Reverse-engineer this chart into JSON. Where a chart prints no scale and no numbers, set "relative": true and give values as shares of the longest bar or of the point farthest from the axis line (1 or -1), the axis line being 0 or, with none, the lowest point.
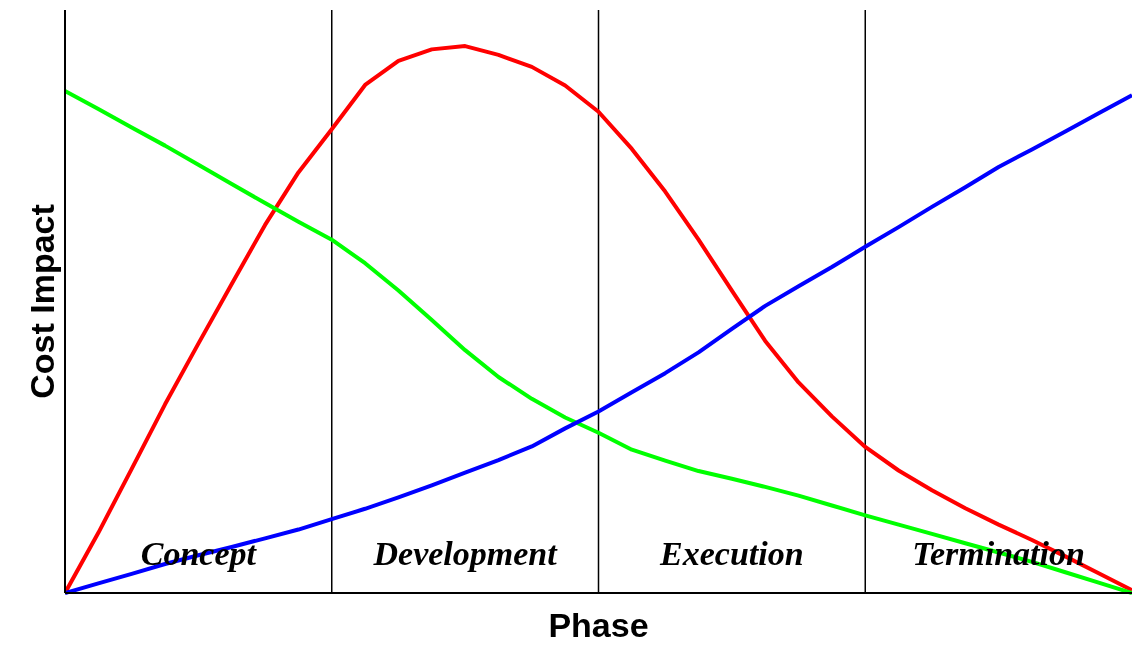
{
  "chart_data": {
    "type": "line",
    "relative": true,
    "xlabel": "Phase",
    "ylabel": "Cost Impact",
    "categories": [
      null,
      null,
      null,
      null,
      "Concept",
      null,
      null,
      null,
      null,
      null,
      null,
      null,
      "Development",
      null,
      null,
      null,
      null,
      null,
      null,
      null,
      "Execution",
      null,
      null,
      null,
      null,
      null,
      null,
      null,
      "Termination",
      null,
      null,
      null,
      null
    ],
    "grid": "x",
    "marker": "none",
    "line_style": "solid",
    "series": [
      {
        "color": "#ff0000",
        "values": [
          0,
          0.11,
          0.227,
          0.345,
          0.456,
          0.565,
          0.673,
          0.769,
          0.848,
          0.929,
          0.973,
          0.994,
          1,
          0.984,
          0.962,
          0.928,
          0.88,
          0.812,
          0.734,
          0.646,
          0.553,
          0.461,
          0.385,
          0.323,
          0.267,
          0.224,
          0.188,
          0.155,
          0.125,
          0.097,
          0.067,
          0.036,
          0.005
        ]
      },
      {
        "color": "#00ff00",
        "values": [
          0.918,
          0.885,
          0.851,
          0.818,
          0.783,
          0.748,
          0.713,
          0.679,
          0.646,
          0.603,
          0.553,
          0.499,
          0.444,
          0.395,
          0.355,
          0.321,
          0.293,
          0.262,
          0.242,
          0.223,
          0.209,
          0.194,
          0.178,
          0.16,
          0.142,
          0.125,
          0.108,
          0.091,
          0.074,
          0.057,
          0.038,
          0.019,
          0
        ]
      },
      {
        "color": "#0000ff",
        "values": [
          0,
          0.0175,
          0.035,
          0.053,
          0.069,
          0.084,
          0.1,
          0.116,
          0.135,
          0.154,
          0.175,
          0.197,
          0.22,
          0.243,
          0.268,
          0.301,
          0.332,
          0.367,
          0.402,
          0.44,
          0.483,
          0.525,
          0.561,
          0.596,
          0.633,
          0.669,
          0.706,
          0.742,
          0.779,
          0.811,
          0.844,
          0.877,
          0.91
        ]
      }
    ]
  }
}
